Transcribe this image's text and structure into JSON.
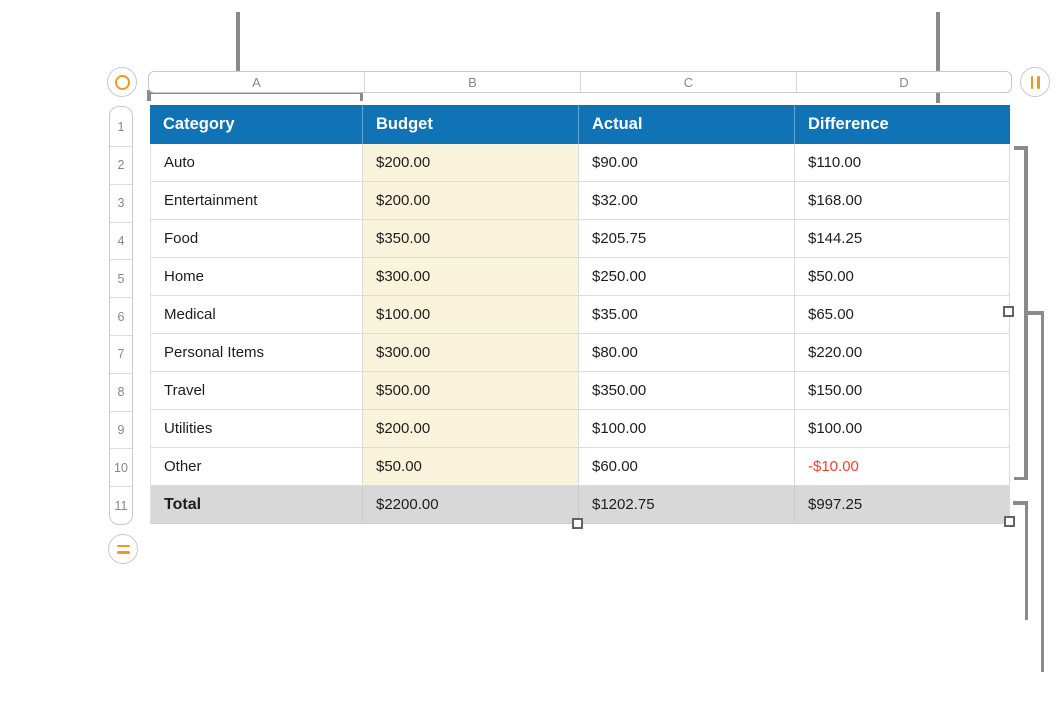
{
  "column_refs": [
    "A",
    "B",
    "C",
    "D"
  ],
  "row_refs": [
    "1",
    "2",
    "3",
    "4",
    "5",
    "6",
    "7",
    "8",
    "9",
    "10",
    "11"
  ],
  "table": {
    "headers": [
      "Category",
      "Budget",
      "Actual",
      "Difference"
    ],
    "rows": [
      [
        "Auto",
        "$200.00",
        "$90.00",
        "$110.00"
      ],
      [
        "Entertainment",
        "$200.00",
        "$32.00",
        "$168.00"
      ],
      [
        "Food",
        "$350.00",
        "$205.75",
        "$144.25"
      ],
      [
        "Home",
        "$300.00",
        "$250.00",
        "$50.00"
      ],
      [
        "Medical",
        "$100.00",
        "$35.00",
        "$65.00"
      ],
      [
        "Personal Items",
        "$300.00",
        "$80.00",
        "$220.00"
      ],
      [
        "Travel",
        "$500.00",
        "$350.00",
        "$150.00"
      ],
      [
        "Utilities",
        "$200.00",
        "$100.00",
        "$100.00"
      ],
      [
        "Other",
        "$50.00",
        "$60.00",
        "-$10.00"
      ]
    ],
    "total_row": [
      "Total",
      "$2200.00",
      "$1202.75",
      "$997.25"
    ]
  },
  "icons": {
    "table_select": "circle-outline-icon",
    "add_columns": "two-vertical-bars-icon",
    "add_rows": "two-horizontal-bars-icon"
  },
  "colors": {
    "header_bg": "#0f73b6",
    "budget_col_bg": "#faf3dc",
    "total_row_bg": "#d8d8d8",
    "negative": "#ff3b30",
    "accent_orange": "#f2971e",
    "callout": "#8a8a8a"
  }
}
